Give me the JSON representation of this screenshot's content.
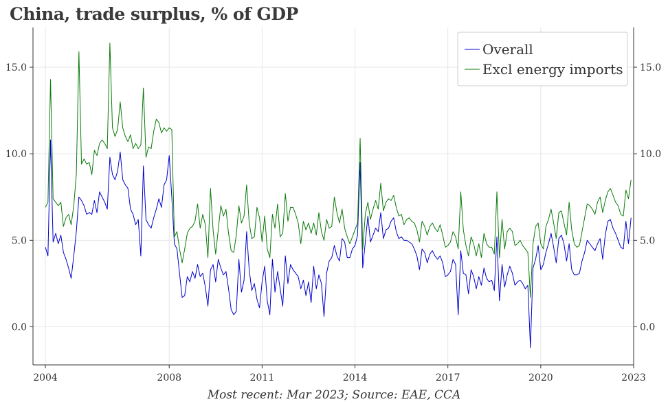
{
  "chart_data": {
    "type": "line",
    "title": "China, trade surplus, % of GDP",
    "source": "Most recent: Mar 2023; Source: EAE, CCA",
    "xlabel": "",
    "ylabel": "",
    "xlim": [
      2003.6,
      2023.0
    ],
    "ylim": [
      -2.2,
      17.3
    ],
    "x_ticks": [
      2004,
      2008,
      2011,
      2014,
      2017,
      2020,
      2023
    ],
    "x_tick_labels": [
      "2004",
      "2008",
      "2011",
      "2014",
      "2017",
      "2020",
      "2023"
    ],
    "y_ticks": [
      0,
      5,
      10,
      15
    ],
    "y_tick_labels": [
      "0.0",
      "5.0",
      "10.0",
      "15.0"
    ],
    "grid": true,
    "legend_position": "top-right",
    "x_start": 2004.0,
    "x_step": 0.0833333,
    "series": [
      {
        "name": "Overall",
        "color": "#0000cc",
        "values": [
          4.6,
          4.1,
          10.8,
          4.9,
          5.4,
          4.8,
          5.3,
          4.3,
          3.9,
          3.4,
          2.8,
          4.1,
          5.5,
          7.5,
          7.3,
          7.0,
          6.5,
          6.6,
          6.5,
          7.3,
          6.6,
          7.8,
          7.5,
          7.2,
          6.8,
          9.8,
          8.8,
          8.5,
          9.0,
          10.1,
          8.5,
          8.2,
          8.0,
          6.8,
          6.5,
          5.9,
          6.2,
          4.1,
          9.3,
          6.2,
          5.9,
          5.7,
          6.3,
          6.8,
          7.4,
          6.9,
          8.2,
          8.5,
          9.9,
          7.5,
          4.8,
          4.5,
          3.1,
          1.7,
          1.8,
          2.9,
          2.6,
          3.2,
          2.8,
          3.6,
          2.9,
          3.1,
          2.3,
          1.2,
          3.3,
          3.6,
          2.6,
          3.9,
          3.4,
          3.0,
          3.2,
          2.2,
          1.0,
          0.7,
          0.9,
          3.9,
          2.0,
          2.7,
          5.5,
          3.3,
          2.1,
          2.5,
          1.6,
          1.1,
          2.6,
          3.5,
          1.5,
          0.7,
          3.9,
          2.0,
          3.2,
          2.2,
          1.2,
          4.1,
          2.5,
          3.6,
          3.3,
          3.1,
          2.9,
          2.2,
          2.7,
          1.8,
          2.6,
          1.4,
          3.5,
          2.2,
          3.0,
          2.5,
          0.6,
          3.1,
          3.8,
          4.0,
          4.7,
          4.1,
          3.8,
          5.1,
          4.9,
          4.0,
          4.0,
          4.5,
          4.7,
          5.3,
          9.5,
          3.4,
          4.9,
          6.4,
          4.9,
          5.3,
          5.7,
          5.5,
          6.6,
          5.1,
          5.6,
          5.7,
          6.1,
          6.3,
          5.5,
          5.1,
          5.2,
          5.0,
          5.0,
          4.9,
          4.8,
          4.5,
          4.1,
          3.3,
          4.5,
          4.3,
          3.7,
          4.2,
          4.4,
          4.1,
          3.9,
          4.1,
          3.7,
          2.9,
          3.0,
          3.2,
          3.9,
          3.6,
          0.7,
          4.4,
          3.1,
          3.0,
          1.9,
          3.3,
          2.9,
          2.2,
          2.9,
          2.4,
          3.4,
          2.8,
          2.6,
          2.7,
          2.1,
          5.2,
          1.5,
          3.6,
          2.3,
          3.0,
          3.5,
          3.1,
          2.4,
          2.6,
          2.7,
          2.5,
          2.2,
          2.4,
          -1.2,
          3.4,
          3.9,
          4.7,
          3.3,
          3.6,
          4.3,
          4.8,
          5.4,
          4.6,
          3.7,
          5.1,
          5.3,
          4.8,
          3.8,
          4.8,
          3.3,
          3.0,
          3.0,
          3.1,
          3.8,
          4.3,
          5.0,
          4.8,
          4.6,
          4.4,
          4.8,
          5.1,
          3.9,
          5.3,
          6.1,
          6.2,
          5.7,
          5.4,
          5.0,
          4.6,
          4.5,
          6.1,
          4.8,
          6.3
        ]
      },
      {
        "name": "Excl energy imports",
        "color": "#0a7a0a",
        "values": [
          6.9,
          7.2,
          14.3,
          7.4,
          7.2,
          7.0,
          7.2,
          5.8,
          6.3,
          6.5,
          5.9,
          7.0,
          8.8,
          15.9,
          9.4,
          9.7,
          9.4,
          9.5,
          8.8,
          10.2,
          9.9,
          10.6,
          10.8,
          10.6,
          10.3,
          16.4,
          11.5,
          11.0,
          11.4,
          13.0,
          11.5,
          11.0,
          10.7,
          11.1,
          10.3,
          10.6,
          10.3,
          10.5,
          13.8,
          9.8,
          10.4,
          10.3,
          11.3,
          12.0,
          11.8,
          11.2,
          11.5,
          11.3,
          11.5,
          11.4,
          5.2,
          5.5,
          4.5,
          3.7,
          4.5,
          5.4,
          5.7,
          5.8,
          6.1,
          7.1,
          5.7,
          6.5,
          5.9,
          4.0,
          8.0,
          5.6,
          4.2,
          5.6,
          7.0,
          6.4,
          6.8,
          5.4,
          4.4,
          4.3,
          5.3,
          7.0,
          6.0,
          6.4,
          8.2,
          6.0,
          5.1,
          5.2,
          6.9,
          6.3,
          4.9,
          6.4,
          4.5,
          4.0,
          6.5,
          5.7,
          7.1,
          5.2,
          5.4,
          7.7,
          6.1,
          6.9,
          6.9,
          6.5,
          6.0,
          4.8,
          6.1,
          5.6,
          6.0,
          5.4,
          6.0,
          5.3,
          6.6,
          5.5,
          5.0,
          6.2,
          5.7,
          5.8,
          7.5,
          6.6,
          6.0,
          6.8,
          5.7,
          5.2,
          4.8,
          5.2,
          5.6,
          6.0,
          10.9,
          4.5,
          6.5,
          7.2,
          6.2,
          6.8,
          7.3,
          6.8,
          8.3,
          6.7,
          7.2,
          7.4,
          7.3,
          7.6,
          6.9,
          6.4,
          6.5,
          5.9,
          6.2,
          6.3,
          6.1,
          6.0,
          5.6,
          4.9,
          6.1,
          5.8,
          5.3,
          5.8,
          6.0,
          5.7,
          5.5,
          5.9,
          5.3,
          4.6,
          4.7,
          4.9,
          5.5,
          5.2,
          4.5,
          7.8,
          5.6,
          4.7,
          4.1,
          5.2,
          4.8,
          4.1,
          4.8,
          4.0,
          5.4,
          4.8,
          4.6,
          4.6,
          4.2,
          7.8,
          4.0,
          6.2,
          4.5,
          5.5,
          5.7,
          5.5,
          4.7,
          4.8,
          5.0,
          4.7,
          4.5,
          4.3,
          1.7,
          4.8,
          5.8,
          6.0,
          4.8,
          4.5,
          5.8,
          6.2,
          6.8,
          6.0,
          5.1,
          6.6,
          6.7,
          6.0,
          5.3,
          7.2,
          5.6,
          4.8,
          4.6,
          4.7,
          5.5,
          6.3,
          7.1,
          7.0,
          6.8,
          6.5,
          7.2,
          7.5,
          6.6,
          7.3,
          7.8,
          8.0,
          7.6,
          7.2,
          7.0,
          6.5,
          6.4,
          7.9,
          7.4,
          8.5
        ]
      }
    ]
  }
}
